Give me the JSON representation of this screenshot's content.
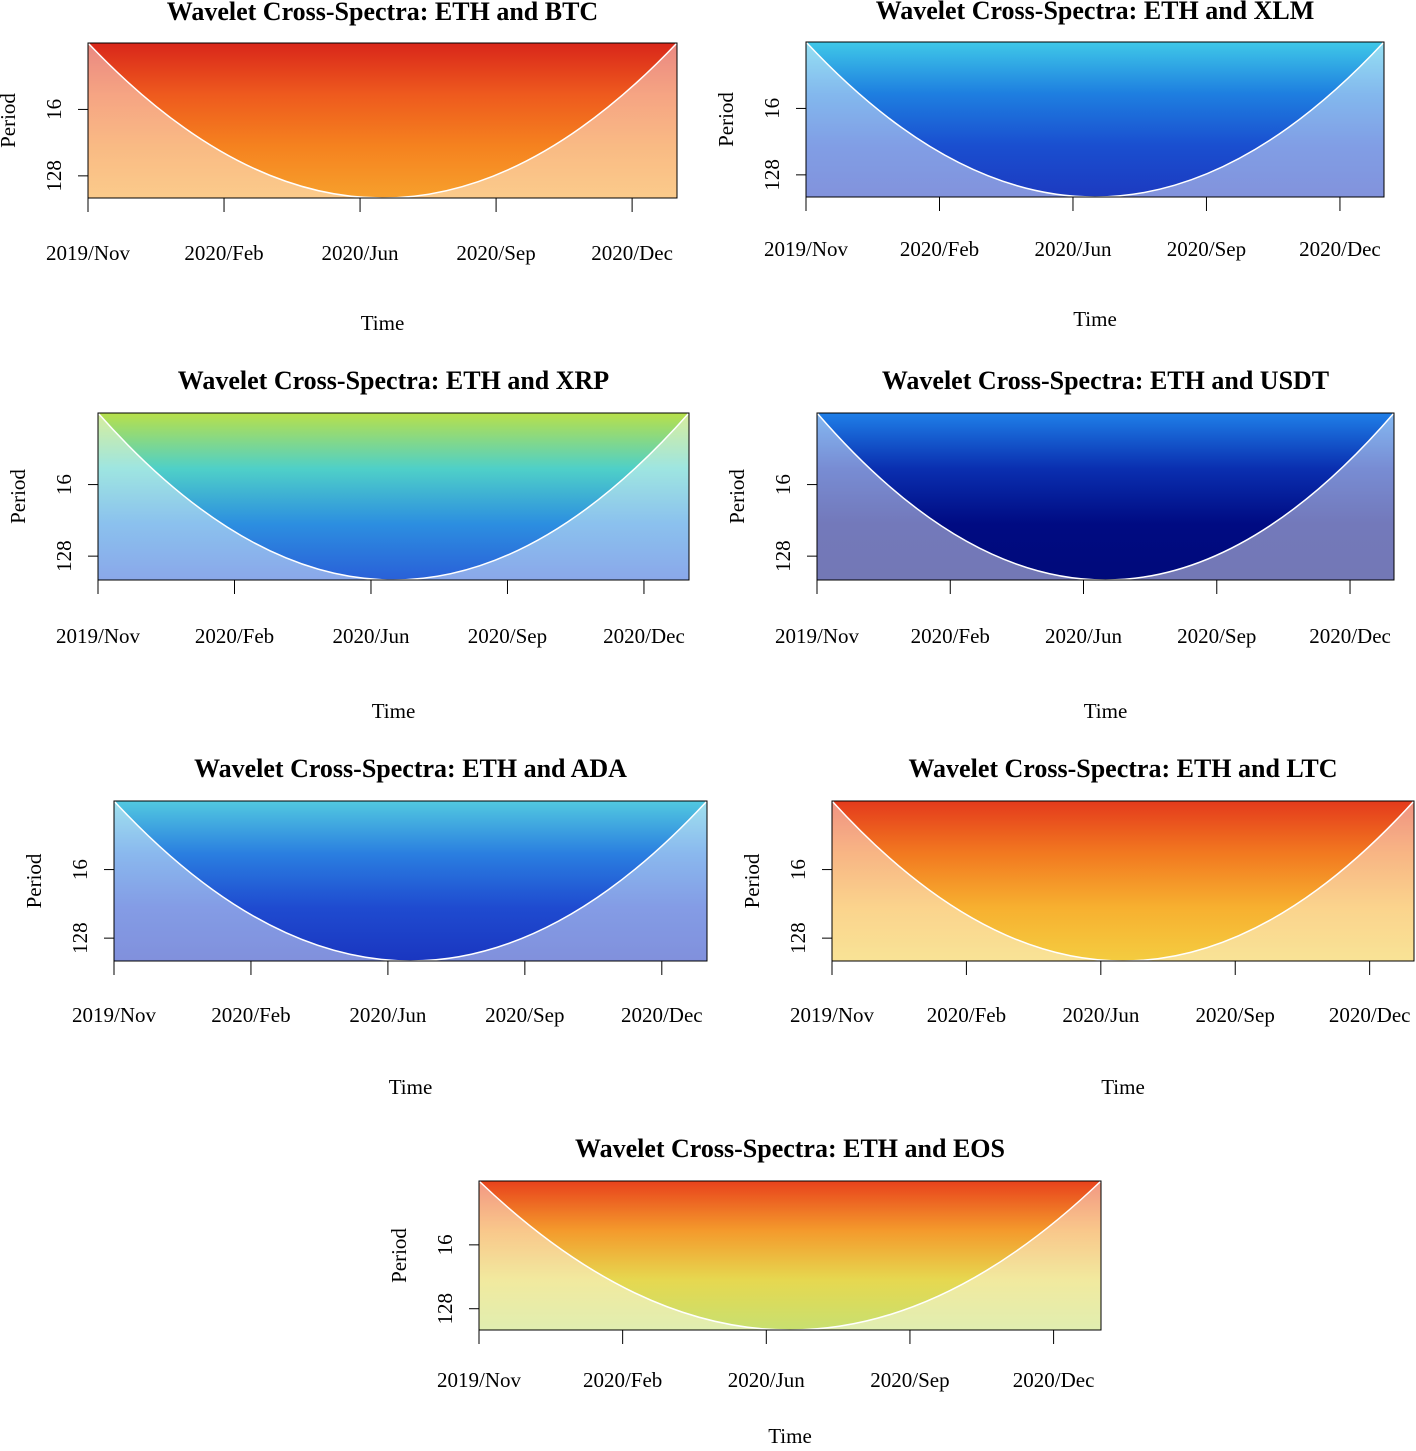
{
  "chart_data": [
    {
      "type": "heatmap",
      "title": "Wavelet Cross-Spectra: ETH and BTC",
      "xlabel": "Time",
      "ylabel": "Period",
      "xlim": [
        0,
        433
      ],
      "xticks": [
        {
          "value": 0,
          "label": "2019/Nov"
        },
        {
          "value": 100,
          "label": "2020/Feb"
        },
        {
          "value": 200,
          "label": "2020/Jun"
        },
        {
          "value": 300,
          "label": "2020/Sep"
        },
        {
          "value": 400,
          "label": "2020/Dec"
        }
      ],
      "ylim": [
        2,
        256
      ],
      "yticks": [
        16,
        128
      ],
      "yscale": "log",
      "colors": [
        "#d9261a",
        "#ee5a1e",
        "#f5821f",
        "#f7a02c"
      ]
    },
    {
      "type": "heatmap",
      "title": "Wavelet Cross-Spectra: ETH and XLM",
      "xlabel": "Time",
      "ylabel": "Period",
      "xlim": [
        0,
        433
      ],
      "xticks": [
        {
          "value": 0,
          "label": "2019/Nov"
        },
        {
          "value": 100,
          "label": "2020/Feb"
        },
        {
          "value": 200,
          "label": "2020/Jun"
        },
        {
          "value": 300,
          "label": "2020/Sep"
        },
        {
          "value": 400,
          "label": "2020/Dec"
        }
      ],
      "ylim": [
        2,
        256
      ],
      "yticks": [
        16,
        128
      ],
      "yscale": "log",
      "colors": [
        "#3fc8e8",
        "#1e7fe0",
        "#1a4fd0",
        "#1c3ac0"
      ]
    },
    {
      "type": "heatmap",
      "title": "Wavelet Cross-Spectra: ETH and XRP",
      "xlabel": "Time",
      "ylabel": "Period",
      "xlim": [
        0,
        433
      ],
      "xticks": [
        {
          "value": 0,
          "label": "2019/Nov"
        },
        {
          "value": 100,
          "label": "2020/Feb"
        },
        {
          "value": 200,
          "label": "2020/Jun"
        },
        {
          "value": 300,
          "label": "2020/Sep"
        },
        {
          "value": 400,
          "label": "2020/Dec"
        }
      ],
      "ylim": [
        2,
        256
      ],
      "yticks": [
        16,
        128
      ],
      "yscale": "log",
      "colors": [
        "#b8e04a",
        "#4fd0c8",
        "#2c8ee0",
        "#2a60d8"
      ]
    },
    {
      "type": "heatmap",
      "title": "Wavelet Cross-Spectra: ETH and USDT",
      "xlabel": "Time",
      "ylabel": "Period",
      "xlim": [
        0,
        433
      ],
      "xticks": [
        {
          "value": 0,
          "label": "2019/Nov"
        },
        {
          "value": 100,
          "label": "2020/Feb"
        },
        {
          "value": 200,
          "label": "2020/Jun"
        },
        {
          "value": 300,
          "label": "2020/Sep"
        },
        {
          "value": 400,
          "label": "2020/Dec"
        }
      ],
      "ylim": [
        2,
        256
      ],
      "yticks": [
        16,
        128
      ],
      "yscale": "log",
      "colors": [
        "#1f7fe8",
        "#0a2fb0",
        "#000b82",
        "#000a7a"
      ]
    },
    {
      "type": "heatmap",
      "title": "Wavelet Cross-Spectra: ETH and ADA",
      "xlabel": "Time",
      "ylabel": "Period",
      "xlim": [
        0,
        433
      ],
      "xticks": [
        {
          "value": 0,
          "label": "2019/Nov"
        },
        {
          "value": 100,
          "label": "2020/Feb"
        },
        {
          "value": 200,
          "label": "2020/Jun"
        },
        {
          "value": 300,
          "label": "2020/Sep"
        },
        {
          "value": 400,
          "label": "2020/Dec"
        }
      ],
      "ylim": [
        2,
        256
      ],
      "yticks": [
        16,
        128
      ],
      "yscale": "log",
      "colors": [
        "#52c9e0",
        "#2a7ee0",
        "#1f4bd0",
        "#1a36c0"
      ]
    },
    {
      "type": "heatmap",
      "title": "Wavelet Cross-Spectra: ETH and LTC",
      "xlabel": "Time",
      "ylabel": "Period",
      "xlim": [
        0,
        433
      ],
      "xticks": [
        {
          "value": 0,
          "label": "2019/Nov"
        },
        {
          "value": 100,
          "label": "2020/Feb"
        },
        {
          "value": 200,
          "label": "2020/Jun"
        },
        {
          "value": 300,
          "label": "2020/Sep"
        },
        {
          "value": 400,
          "label": "2020/Dec"
        }
      ],
      "ylim": [
        2,
        256
      ],
      "yticks": [
        16,
        128
      ],
      "yscale": "log",
      "colors": [
        "#e43a1c",
        "#f27a20",
        "#f7b030",
        "#f4cc40"
      ]
    },
    {
      "type": "heatmap",
      "title": "Wavelet Cross-Spectra: ETH and EOS",
      "xlabel": "Time",
      "ylabel": "Period",
      "xlim": [
        0,
        433
      ],
      "xticks": [
        {
          "value": 0,
          "label": "2019/Nov"
        },
        {
          "value": 100,
          "label": "2020/Feb"
        },
        {
          "value": 200,
          "label": "2020/Jun"
        },
        {
          "value": 300,
          "label": "2020/Sep"
        },
        {
          "value": 400,
          "label": "2020/Dec"
        }
      ],
      "ylim": [
        2,
        256
      ],
      "yticks": [
        16,
        128
      ],
      "yscale": "log",
      "colors": [
        "#e8421c",
        "#f49a2c",
        "#e6d850",
        "#c8e070"
      ]
    }
  ]
}
